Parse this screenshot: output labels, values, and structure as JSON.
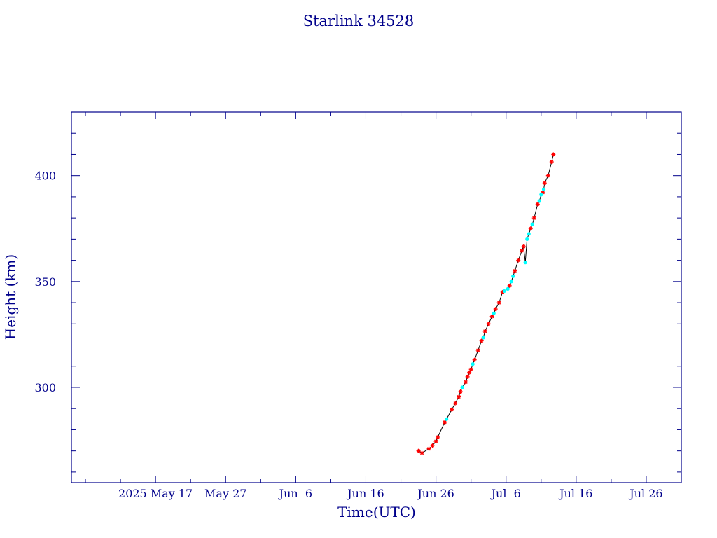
{
  "chart_data": {
    "type": "scatter",
    "title": "Starlink 34528",
    "xlabel": "Time(UTC)",
    "ylabel": "Height (km)",
    "x_unit": "date",
    "xlim": [
      "2025-05-05",
      "2025-07-31"
    ],
    "ylim": [
      255,
      430
    ],
    "grid": false,
    "legend": "none",
    "colors": {
      "axes": "#00008b",
      "text": "#00008b",
      "line": "#000000",
      "marker_primary": "#ff0000",
      "marker_secondary": "#00ffff"
    },
    "x_ticks": [
      {
        "label": "2025 May 17",
        "date": "2025-05-17"
      },
      {
        "label": "May 27",
        "date": "2025-05-27"
      },
      {
        "label": "Jun  6",
        "date": "2025-06-06"
      },
      {
        "label": "Jun 16",
        "date": "2025-06-16"
      },
      {
        "label": "Jun 26",
        "date": "2025-06-26"
      },
      {
        "label": "Jul  6",
        "date": "2025-07-06"
      },
      {
        "label": "Jul 16",
        "date": "2025-07-16"
      },
      {
        "label": "Jul 26",
        "date": "2025-07-26"
      }
    ],
    "y_ticks": [
      {
        "label": "300",
        "value": 300
      },
      {
        "label": "350",
        "value": 350
      },
      {
        "label": "400",
        "value": 400
      }
    ],
    "series": [
      {
        "marker": "asterisk",
        "color": "#ff0000",
        "points": [
          [
            "2025-06-23T12:00",
            270.0
          ],
          [
            "2025-06-24T00:00",
            269.0
          ],
          [
            "2025-06-25T00:00",
            271.0
          ],
          [
            "2025-06-25T12:00",
            272.5
          ],
          [
            "2025-06-26T00:00",
            274.5
          ],
          [
            "2025-06-26T06:00",
            276.5
          ],
          [
            "2025-06-27T06:00",
            283.5
          ],
          [
            "2025-06-28T06:00",
            289.5
          ],
          [
            "2025-06-28T18:00",
            292.5
          ],
          [
            "2025-06-29T06:00",
            295.5
          ],
          [
            "2025-06-29T12:00",
            298.0
          ],
          [
            "2025-06-30T06:00",
            302.5
          ],
          [
            "2025-06-30T12:00",
            305.0
          ],
          [
            "2025-06-30T18:00",
            307.0
          ],
          [
            "2025-07-01T00:00",
            308.5
          ],
          [
            "2025-07-01T12:00",
            313.0
          ],
          [
            "2025-07-02T00:00",
            317.5
          ],
          [
            "2025-07-02T12:00",
            322.0
          ],
          [
            "2025-07-03T00:00",
            326.5
          ],
          [
            "2025-07-03T12:00",
            330.0
          ],
          [
            "2025-07-04T00:00",
            333.5
          ],
          [
            "2025-07-04T12:00",
            337.0
          ],
          [
            "2025-07-05T00:00",
            340.0
          ],
          [
            "2025-07-05T12:00",
            345.0
          ],
          [
            "2025-07-06T12:00",
            348.0
          ],
          [
            "2025-07-07T06:00",
            355.0
          ],
          [
            "2025-07-07T18:00",
            360.0
          ],
          [
            "2025-07-08T06:00",
            364.5
          ],
          [
            "2025-07-08T12:00",
            366.5
          ],
          [
            "2025-07-09T12:00",
            375.0
          ],
          [
            "2025-07-10T00:00",
            380.0
          ],
          [
            "2025-07-10T12:00",
            386.5
          ],
          [
            "2025-07-11T06:00",
            392.0
          ],
          [
            "2025-07-11T12:00",
            396.5
          ],
          [
            "2025-07-12T00:00",
            400.0
          ],
          [
            "2025-07-12T12:00",
            406.5
          ],
          [
            "2025-07-12T18:00",
            410.0
          ]
        ]
      },
      {
        "marker": "dot",
        "color": "#00ffff",
        "points": [
          [
            "2025-06-27T12:00",
            285.0
          ],
          [
            "2025-06-29T18:00",
            300.0
          ],
          [
            "2025-07-01T06:00",
            311.0
          ],
          [
            "2025-07-02T18:00",
            323.5
          ],
          [
            "2025-07-04T06:00",
            335.0
          ],
          [
            "2025-07-05T18:00",
            345.5
          ],
          [
            "2025-07-06T06:00",
            346.5
          ],
          [
            "2025-07-06T18:00",
            350.0
          ],
          [
            "2025-07-07T00:00",
            352.5
          ],
          [
            "2025-07-08T18:00",
            359.0
          ],
          [
            "2025-07-09T00:00",
            370.0
          ],
          [
            "2025-07-09T06:00",
            372.5
          ],
          [
            "2025-07-09T18:00",
            377.0
          ],
          [
            "2025-07-10T18:00",
            388.0
          ],
          [
            "2025-07-11T00:00",
            391.0
          ],
          [
            "2025-07-11T09:00",
            393.5
          ]
        ]
      }
    ]
  }
}
